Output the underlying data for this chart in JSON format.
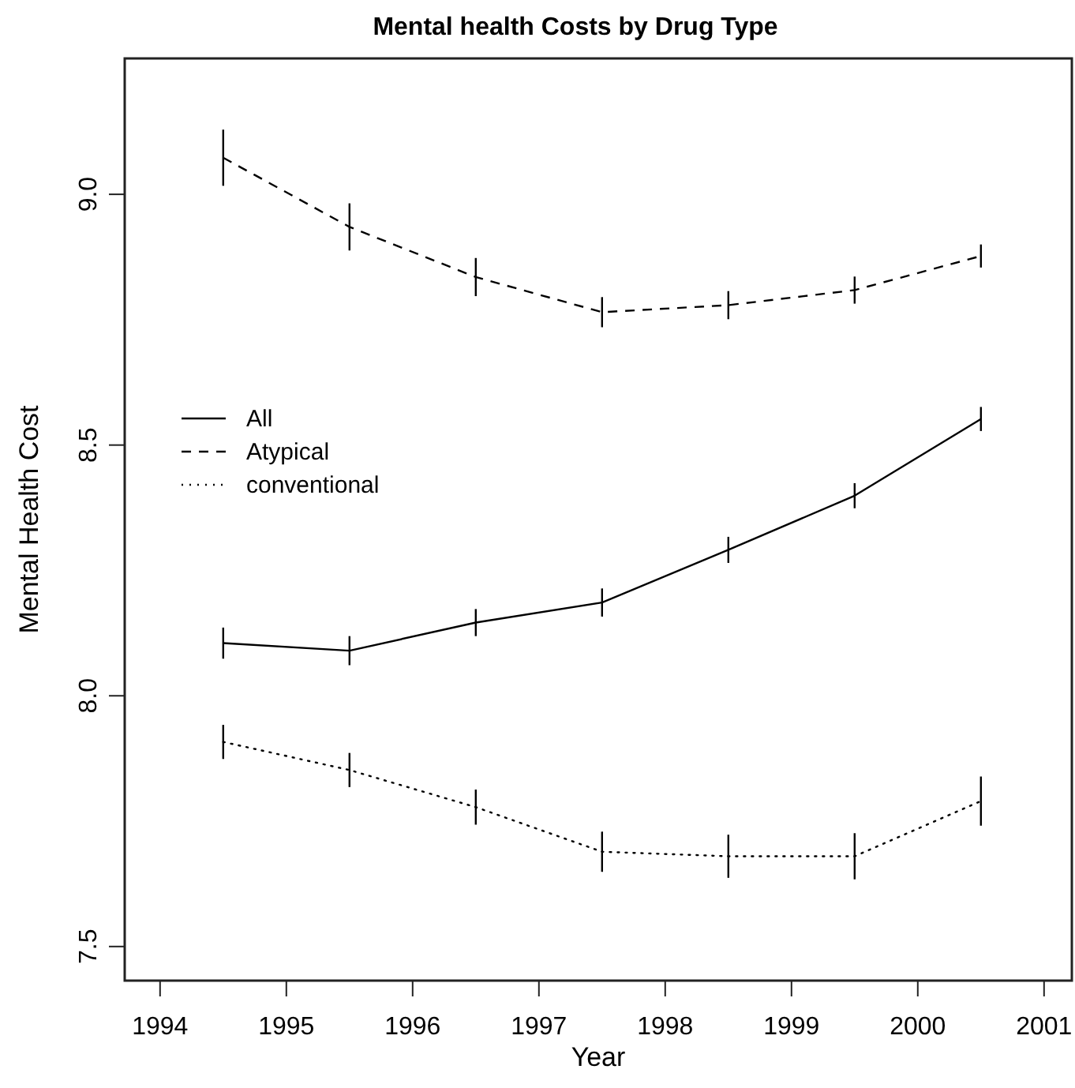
{
  "chart_data": {
    "type": "line",
    "title": "Mental health Costs by Drug Type",
    "xlabel": "Year",
    "ylabel": "Mental Health Cost",
    "x": [
      1994.5,
      1995.5,
      1996.5,
      1997.5,
      1998.5,
      1999.5,
      2000.5
    ],
    "xlim": [
      1993.72,
      2001.22
    ],
    "xticks": [
      1994,
      1995,
      1996,
      1997,
      1998,
      1999,
      2000,
      2001
    ],
    "ylim": [
      7.432,
      9.271
    ],
    "yticks": [
      7.5,
      {
        "value": 8,
        "label": "8.0"
      },
      8.5,
      {
        "value": 9,
        "label": "9.0"
      }
    ],
    "legend": "left",
    "marker": "none",
    "grid": false,
    "series": [
      {
        "name": "All",
        "color": "#000000",
        "line_style": "solid",
        "values": [
          8.105,
          8.09,
          8.146,
          8.186,
          8.291,
          8.399,
          8.552
        ],
        "errors": [
          0.031,
          0.029,
          0.027,
          0.028,
          0.026,
          0.025,
          0.024
        ]
      },
      {
        "name": "Atypical",
        "color": "#000000",
        "line_style": "dashed",
        "values": [
          9.073,
          8.935,
          8.835,
          8.765,
          8.779,
          8.809,
          8.877
        ],
        "errors": [
          0.056,
          0.047,
          0.038,
          0.03,
          0.028,
          0.027,
          0.023
        ]
      },
      {
        "name": "conventional",
        "color": "#000000",
        "line_style": "dotted",
        "values": [
          7.908,
          7.852,
          7.778,
          7.689,
          7.68,
          7.68,
          7.79
        ],
        "errors": [
          0.034,
          0.034,
          0.035,
          0.04,
          0.043,
          0.046,
          0.049
        ]
      }
    ]
  }
}
